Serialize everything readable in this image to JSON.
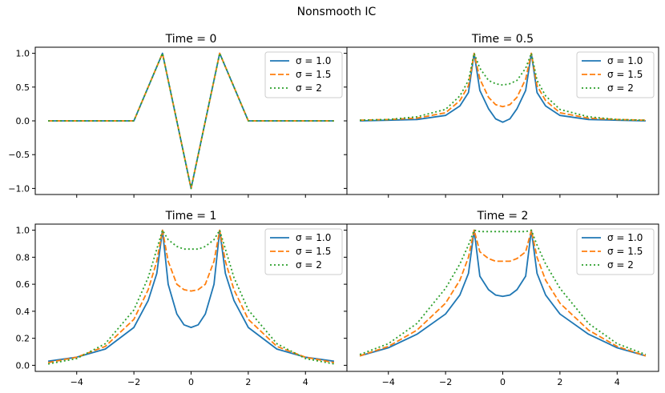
{
  "figure": {
    "suptitle": "Nonsmooth IC"
  },
  "colors": {
    "series": [
      "#1f77b4",
      "#ff7f0e",
      "#2ca02c"
    ],
    "axes": "#000000",
    "legend_border": "#cccccc"
  },
  "chart_data": [
    {
      "type": "line",
      "title": "Time = 0",
      "xlim": [
        -5,
        5
      ],
      "ylim": [
        -1.0,
        1.0
      ],
      "yticks": [
        "−1.0",
        "−0.5",
        "0.0",
        "0.5",
        "1.0"
      ],
      "xticks": [
        "−4",
        "−2",
        "0",
        "2",
        "4"
      ],
      "legend": "top-right",
      "grid": false,
      "x": [
        -5,
        -4,
        -3,
        -2,
        -1,
        0,
        1,
        2,
        3,
        4,
        5
      ],
      "series": [
        {
          "name": "σ = 1.0",
          "style": "solid",
          "values": [
            0,
            0,
            0,
            0,
            1,
            -1,
            1,
            0,
            0,
            0,
            0
          ]
        },
        {
          "name": "σ = 1.5",
          "style": "dashed",
          "values": [
            0,
            0,
            0,
            0,
            1,
            -1,
            1,
            0,
            0,
            0,
            0
          ]
        },
        {
          "name": "σ = 2",
          "style": "dotted",
          "values": [
            0,
            0,
            0,
            0,
            1,
            -1,
            1,
            0,
            0,
            0,
            0
          ]
        }
      ]
    },
    {
      "type": "line",
      "title": "Time = 0.5",
      "xlim": [
        -5,
        5
      ],
      "ylim": [
        -1.0,
        1.0
      ],
      "legend": "top-right",
      "grid": false,
      "x": [
        -5,
        -4,
        -3,
        -2,
        -1.5,
        -1.2,
        -1,
        -0.8,
        -0.5,
        -0.25,
        0,
        0.25,
        0.5,
        0.8,
        1,
        1.2,
        1.5,
        2,
        3,
        4,
        5
      ],
      "series": [
        {
          "name": "σ = 1.0",
          "style": "solid",
          "values": [
            0.0,
            0.01,
            0.02,
            0.08,
            0.22,
            0.42,
            1.0,
            0.45,
            0.18,
            0.03,
            -0.02,
            0.03,
            0.18,
            0.45,
            1.0,
            0.42,
            0.22,
            0.08,
            0.02,
            0.01,
            0.0
          ]
        },
        {
          "name": "σ = 1.5",
          "style": "dashed",
          "values": [
            0.01,
            0.02,
            0.04,
            0.12,
            0.3,
            0.52,
            1.0,
            0.62,
            0.35,
            0.24,
            0.21,
            0.24,
            0.35,
            0.62,
            1.0,
            0.52,
            0.3,
            0.12,
            0.04,
            0.02,
            0.01
          ]
        },
        {
          "name": "σ = 2",
          "style": "dotted",
          "values": [
            0.01,
            0.02,
            0.06,
            0.17,
            0.37,
            0.6,
            1.0,
            0.78,
            0.6,
            0.55,
            0.53,
            0.55,
            0.6,
            0.78,
            1.0,
            0.6,
            0.37,
            0.17,
            0.06,
            0.02,
            0.01
          ]
        }
      ]
    },
    {
      "type": "line",
      "title": "Time = 1",
      "xlim": [
        -5,
        5
      ],
      "ylim": [
        0.0,
        1.0
      ],
      "yticks": [
        "0.0",
        "0.2",
        "0.4",
        "0.6",
        "0.8",
        "1.0"
      ],
      "xticks": [
        "−4",
        "−2",
        "0",
        "2",
        "4"
      ],
      "legend": "top-right",
      "grid": false,
      "x": [
        -5,
        -4,
        -3,
        -2,
        -1.5,
        -1.2,
        -1,
        -0.8,
        -0.5,
        -0.25,
        0,
        0.25,
        0.5,
        0.8,
        1,
        1.2,
        1.5,
        2,
        3,
        4,
        5
      ],
      "series": [
        {
          "name": "σ = 1.0",
          "style": "solid",
          "values": [
            0.03,
            0.06,
            0.12,
            0.28,
            0.48,
            0.68,
            1.0,
            0.6,
            0.38,
            0.3,
            0.28,
            0.3,
            0.38,
            0.6,
            1.0,
            0.68,
            0.48,
            0.28,
            0.12,
            0.06,
            0.03
          ]
        },
        {
          "name": "σ = 1.5",
          "style": "dashed",
          "values": [
            0.02,
            0.06,
            0.14,
            0.34,
            0.56,
            0.77,
            1.0,
            0.77,
            0.6,
            0.56,
            0.55,
            0.56,
            0.6,
            0.77,
            1.0,
            0.77,
            0.56,
            0.34,
            0.14,
            0.06,
            0.02
          ]
        },
        {
          "name": "σ = 2",
          "style": "dotted",
          "values": [
            0.01,
            0.05,
            0.16,
            0.41,
            0.65,
            0.86,
            1.0,
            0.93,
            0.88,
            0.86,
            0.86,
            0.86,
            0.88,
            0.93,
            1.0,
            0.86,
            0.65,
            0.41,
            0.16,
            0.05,
            0.01
          ]
        }
      ]
    },
    {
      "type": "line",
      "title": "Time = 2",
      "xlim": [
        -5,
        5
      ],
      "ylim": [
        0.0,
        1.0
      ],
      "xticks": [
        "−4",
        "−2",
        "0",
        "2",
        "4"
      ],
      "legend": "top-right",
      "grid": false,
      "x": [
        -5,
        -4,
        -3,
        -2,
        -1.5,
        -1.2,
        -1,
        -0.8,
        -0.5,
        -0.25,
        0,
        0.25,
        0.5,
        0.8,
        1,
        1.2,
        1.5,
        2,
        3,
        4,
        5
      ],
      "series": [
        {
          "name": "σ = 1.0",
          "style": "solid",
          "values": [
            0.07,
            0.13,
            0.23,
            0.38,
            0.52,
            0.68,
            1.0,
            0.66,
            0.56,
            0.52,
            0.51,
            0.52,
            0.56,
            0.66,
            1.0,
            0.68,
            0.52,
            0.38,
            0.23,
            0.13,
            0.07
          ]
        },
        {
          "name": "σ = 1.5",
          "style": "dashed",
          "values": [
            0.07,
            0.14,
            0.26,
            0.46,
            0.63,
            0.8,
            1.0,
            0.84,
            0.79,
            0.77,
            0.77,
            0.77,
            0.79,
            0.84,
            1.0,
            0.8,
            0.63,
            0.46,
            0.26,
            0.14,
            0.07
          ]
        },
        {
          "name": "σ = 2",
          "style": "dotted",
          "values": [
            0.08,
            0.16,
            0.31,
            0.57,
            0.75,
            0.89,
            1.0,
            0.99,
            0.99,
            0.99,
            0.99,
            0.99,
            0.99,
            0.99,
            1.0,
            0.89,
            0.75,
            0.57,
            0.31,
            0.16,
            0.08
          ]
        }
      ]
    }
  ]
}
